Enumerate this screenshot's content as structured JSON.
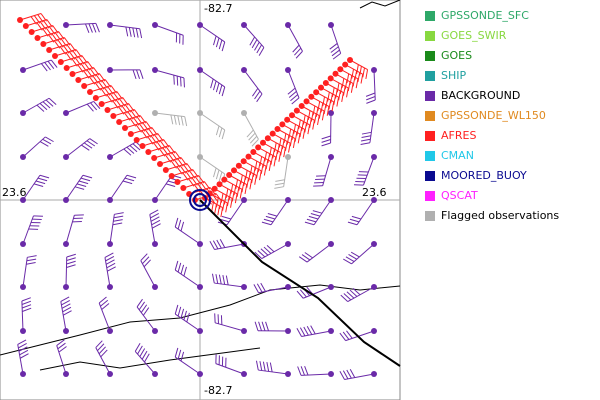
{
  "map": {
    "axis_labels": {
      "lon_top": "-82.7",
      "lon_bottom": "-82.7",
      "lat_left": "23.6",
      "lat_right": "23.6"
    },
    "legend": [
      {
        "name": "GPSSONDE_SFC",
        "color": "#2ea868",
        "text_color": "#2ea868"
      },
      {
        "name": "GOES_SWIR",
        "color": "#88d840",
        "text_color": "#88d840"
      },
      {
        "name": "GOES",
        "color": "#1a8a1a",
        "text_color": "#1a8a1a"
      },
      {
        "name": "SHIP",
        "color": "#20a0a0",
        "text_color": "#20a0a0"
      },
      {
        "name": "BACKGROUND",
        "color": "#6a2aa8",
        "text_color": "#000000"
      },
      {
        "name": "GPSSONDE_WL150",
        "color": "#e08a20",
        "text_color": "#e08a20"
      },
      {
        "name": "AFRES",
        "color": "#ff2020",
        "text_color": "#ff2020"
      },
      {
        "name": "CMAN",
        "color": "#20c8e8",
        "text_color": "#20c8e8"
      },
      {
        "name": "MOORED_BUOY",
        "color": "#0a0a90",
        "text_color": "#0a0a90"
      },
      {
        "name": "QSCAT",
        "color": "#ff20ff",
        "text_color": "#ff20ff"
      },
      {
        "name": "Flagged observations",
        "color": "#b0b0b0",
        "text_color": "#000000"
      }
    ]
  }
}
